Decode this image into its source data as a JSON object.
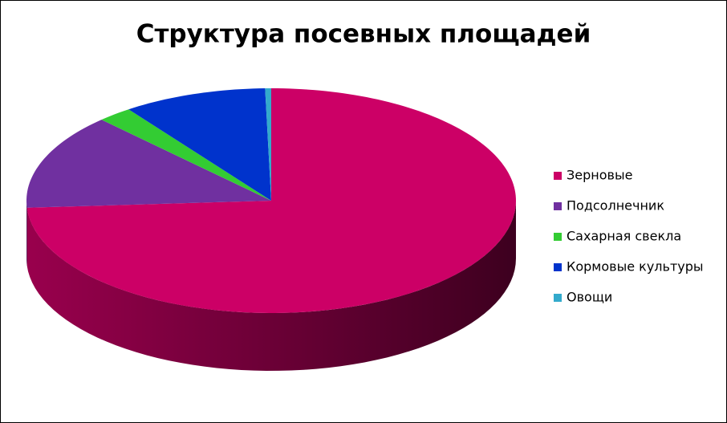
{
  "chart_data": {
    "type": "pie",
    "title": "Структура посевных площадей",
    "categories": [
      "Зерновые",
      "Подсолнечник",
      "Сахарная свекла",
      "Кормовые культуры",
      "Овощи"
    ],
    "values": [
      74,
      13.8,
      2.3,
      9.5,
      0.4
    ],
    "colors": [
      "#cc0066",
      "#7030a0",
      "#33cc33",
      "#0033cc",
      "#33aacc"
    ],
    "legend": "right"
  }
}
